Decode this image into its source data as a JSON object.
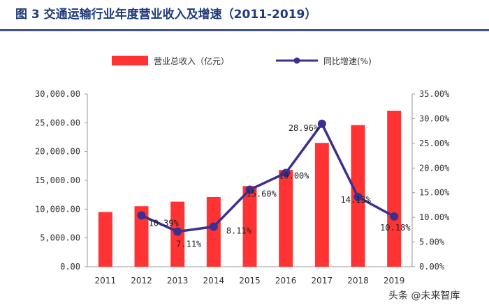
{
  "chart_data": {
    "type": "bar+line",
    "title": "图 3 交通运输行业年度营业收入及增速（2011-2019）",
    "categories": [
      "2011",
      "2012",
      "2013",
      "2014",
      "2015",
      "2016",
      "2017",
      "2018",
      "2019"
    ],
    "series": [
      {
        "name": "营业总收入（亿元）",
        "type": "bar",
        "axis": "left",
        "color": "#ff3333",
        "values": [
          9500,
          10500,
          11300,
          12100,
          14000,
          16800,
          21500,
          24600,
          27100
        ]
      },
      {
        "name": "同比增速(%)",
        "type": "line",
        "axis": "right",
        "color": "#3b2f8f",
        "values": [
          null,
          10.39,
          7.11,
          8.11,
          15.6,
          19.0,
          28.96,
          14.13,
          10.18
        ]
      }
    ],
    "data_labels": [
      "10.39%",
      "7.11%",
      "8.11%",
      "15.60%",
      "19.00%",
      "28.96%",
      "14.13%",
      "10.18%"
    ],
    "y_left": {
      "ylim": [
        0,
        30000
      ],
      "ticks": [
        0,
        5000,
        10000,
        15000,
        20000,
        25000,
        30000
      ],
      "tick_labels": [
        "0.00",
        "5,000.00",
        "10,000.00",
        "15,000.00",
        "20,000.00",
        "25,000.00",
        "30,000.00"
      ]
    },
    "y_right": {
      "ylim": [
        0,
        35
      ],
      "ticks": [
        0,
        5,
        10,
        15,
        20,
        25,
        30,
        35
      ],
      "tick_labels": [
        "0.00%",
        "5.00%",
        "10.00%",
        "15.00%",
        "20.00%",
        "25.00%",
        "30.00%",
        "35.00%"
      ]
    },
    "legend_position": "top",
    "grid": false
  },
  "watermark": {
    "text": "头条 @未来智库"
  },
  "colors": {
    "title": "#1f3a7a",
    "accent_rule": "#1f3a7a"
  }
}
